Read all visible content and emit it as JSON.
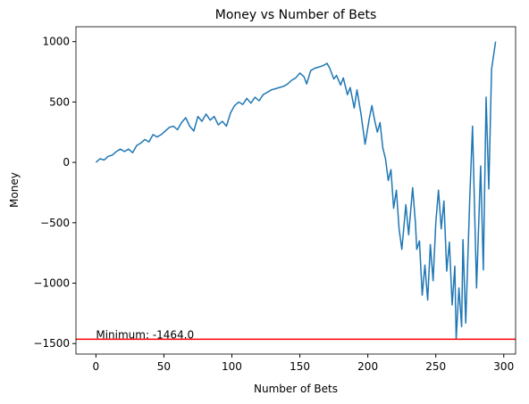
{
  "chart_data": {
    "type": "line",
    "title": "Money vs Number of Bets",
    "xlabel": "Number of Bets",
    "ylabel": "Money",
    "x": [
      0,
      3,
      6,
      9,
      12,
      15,
      18,
      21,
      24,
      27,
      30,
      33,
      36,
      39,
      42,
      45,
      48,
      51,
      54,
      57,
      60,
      63,
      66,
      69,
      72,
      75,
      78,
      81,
      84,
      87,
      90,
      93,
      96,
      99,
      102,
      105,
      108,
      111,
      114,
      117,
      120,
      123,
      126,
      129,
      132,
      135,
      138,
      141,
      144,
      147,
      150,
      153,
      155,
      158,
      161,
      164,
      167,
      170,
      172,
      175,
      177,
      180,
      182,
      185,
      187,
      190,
      192,
      195,
      198,
      201,
      203,
      205,
      207,
      209,
      211,
      213,
      215,
      217,
      219,
      221,
      223,
      225,
      228,
      230,
      233,
      235,
      236,
      238,
      240,
      242,
      244,
      246,
      248,
      250,
      252,
      254,
      256,
      258,
      260,
      262,
      264,
      265,
      267,
      269,
      270,
      272,
      275,
      277,
      280,
      283,
      285,
      287,
      289,
      291,
      294
    ],
    "series": [
      {
        "name": "Money",
        "color": "#1f77b4",
        "values": [
          0,
          30,
          20,
          50,
          60,
          90,
          110,
          90,
          110,
          80,
          140,
          160,
          190,
          170,
          230,
          210,
          230,
          260,
          290,
          300,
          270,
          330,
          370,
          300,
          260,
          380,
          340,
          400,
          350,
          380,
          310,
          340,
          300,
          410,
          470,
          500,
          480,
          530,
          490,
          540,
          510,
          560,
          580,
          600,
          610,
          620,
          630,
          650,
          680,
          700,
          740,
          710,
          650,
          760,
          780,
          790,
          800,
          820,
          780,
          690,
          720,
          640,
          700,
          560,
          620,
          450,
          600,
          400,
          150,
          360,
          470,
          350,
          250,
          330,
          120,
          30,
          -150,
          -60,
          -380,
          -230,
          -550,
          -720,
          -350,
          -600,
          -210,
          -500,
          -720,
          -650,
          -1100,
          -850,
          -1140,
          -680,
          -980,
          -500,
          -230,
          -550,
          -320,
          -900,
          -660,
          -1180,
          -860,
          -1464,
          -1040,
          -1360,
          -640,
          -1330,
          -300,
          300,
          -1040,
          -30,
          -890,
          540,
          -220,
          770,
          1000
        ]
      }
    ],
    "hline": {
      "value": -1464,
      "color": "#ff0000"
    },
    "annotation": "Minimum: -1464.0",
    "xlim": [
      -14.7,
      308.7
    ],
    "ylim": [
      -1587,
      1123
    ],
    "xticks": [
      0,
      50,
      100,
      150,
      200,
      250,
      300
    ],
    "yticks": [
      {
        "value": -1500,
        "label": "−1500"
      },
      {
        "value": -1000,
        "label": "−1000"
      },
      {
        "value": -500,
        "label": "−500"
      },
      0,
      500,
      1000
    ],
    "grid": false
  }
}
